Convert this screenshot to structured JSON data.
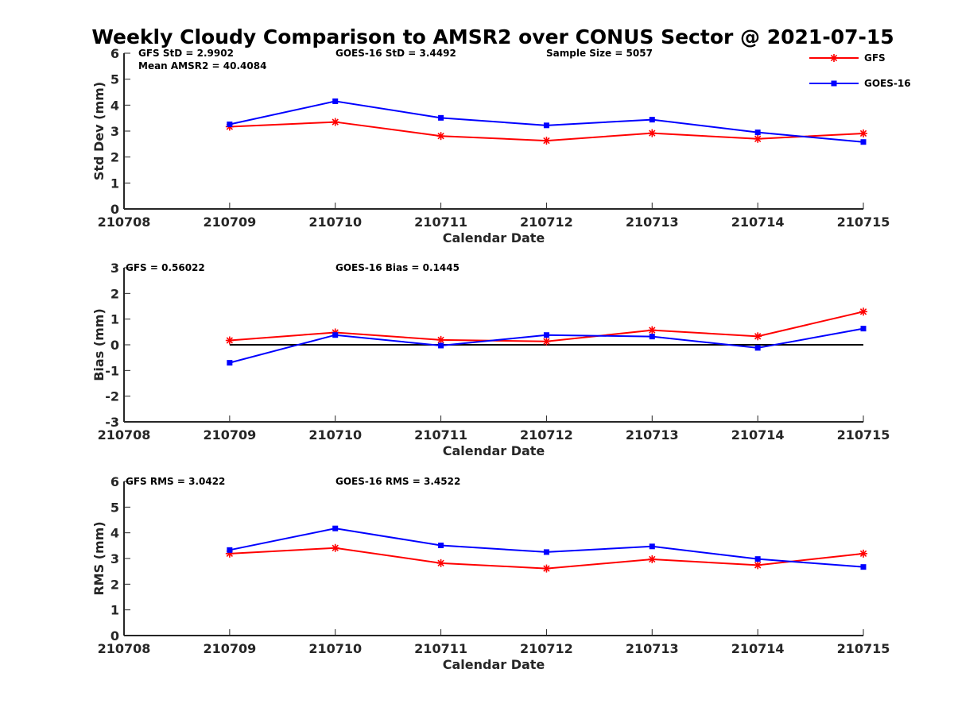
{
  "figure_title": "Weekly Cloudy Comparison to AMSR2 over CONUS Sector @ 2021-07-15",
  "legend": [
    "GFS",
    "GOES-16"
  ],
  "colors": {
    "GFS": "#ff0000",
    "GOES-16": "#0000ff",
    "axis": "#262626",
    "zero_line": "#000000"
  },
  "chart_data": [
    {
      "type": "line",
      "categories": [
        "210708",
        "210709",
        "210710",
        "210711",
        "210712",
        "210713",
        "210714",
        "210715"
      ],
      "xlabel": "Calendar Date",
      "ylabel": "Std Dev (mm)",
      "ylim": [
        0,
        6
      ],
      "yticks": [
        "0",
        "1",
        "2",
        "3",
        "4",
        "5",
        "6"
      ],
      "annotations": [
        "GFS StD = 2.9902",
        "Mean AMSR2 = 40.4084",
        "GOES-16 StD = 3.4492",
        "Sample Size = 5057"
      ],
      "legend": "top-right",
      "series": [
        {
          "name": "GFS",
          "marker": "asterisk",
          "values": [
            null,
            3.17,
            3.35,
            2.81,
            2.63,
            2.92,
            2.7,
            2.91
          ]
        },
        {
          "name": "GOES-16",
          "marker": "square",
          "values": [
            null,
            3.26,
            4.15,
            3.51,
            3.22,
            3.44,
            2.95,
            2.58
          ]
        }
      ]
    },
    {
      "type": "line",
      "categories": [
        "210708",
        "210709",
        "210710",
        "210711",
        "210712",
        "210713",
        "210714",
        "210715"
      ],
      "xlabel": "Calendar Date",
      "ylabel": "Bias (mm)",
      "ylim": [
        -3,
        3
      ],
      "yticks": [
        "-3",
        "-2",
        "-1",
        "0",
        "1",
        "2",
        "3"
      ],
      "zero_line": true,
      "annotations": [
        "GFS = 0.56022",
        "GOES-16 Bias  = 0.1445"
      ],
      "series": [
        {
          "name": "GFS",
          "marker": "asterisk",
          "values": [
            null,
            0.17,
            0.48,
            0.19,
            0.13,
            0.57,
            0.33,
            1.29
          ]
        },
        {
          "name": "GOES-16",
          "marker": "square",
          "values": [
            null,
            -0.7,
            0.38,
            -0.03,
            0.38,
            0.32,
            -0.12,
            0.63
          ]
        }
      ]
    },
    {
      "type": "line",
      "categories": [
        "210708",
        "210709",
        "210710",
        "210711",
        "210712",
        "210713",
        "210714",
        "210715"
      ],
      "xlabel": "Calendar Date",
      "ylabel": "RMS (mm)",
      "ylim": [
        0,
        6
      ],
      "yticks": [
        "0",
        "1",
        "2",
        "3",
        "4",
        "5",
        "6"
      ],
      "annotations": [
        "GFS RMS = 3.0422",
        "GOES-16 RMS = 3.4522"
      ],
      "series": [
        {
          "name": "GFS",
          "marker": "asterisk",
          "values": [
            null,
            3.19,
            3.41,
            2.82,
            2.61,
            2.97,
            2.74,
            3.19
          ]
        },
        {
          "name": "GOES-16",
          "marker": "square",
          "values": [
            null,
            3.33,
            4.17,
            3.51,
            3.25,
            3.47,
            2.98,
            2.67
          ]
        }
      ]
    }
  ]
}
